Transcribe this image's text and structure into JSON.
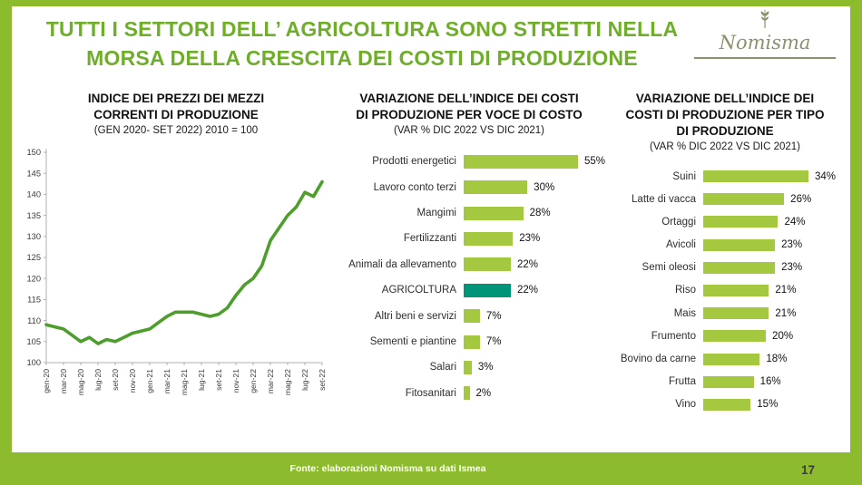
{
  "title": {
    "line1": "TUTTI I SETTORI DELL’ AGRICOLTURA SONO STRETTI NELLA",
    "line2": "MORSA DELLA CRESCITA DEI COSTI DI PRODUZIONE"
  },
  "logo": {
    "name": "Nomisma"
  },
  "footer": {
    "source": "Fonte: elaborazioni Nomisma su dati Ismea",
    "page": "17"
  },
  "colors": {
    "frame": "#8cbb2e",
    "title": "#6fae2a",
    "bar": "#a4c83f",
    "accent": "#009478",
    "line": "#4e9e2d",
    "logo": "#8f8f6d"
  },
  "chart_data": [
    {
      "type": "line",
      "title": "INDICE DEI PREZZI DEI MEZZI CORRENTI DI PRODUZIONE",
      "title_lines": [
        "INDICE DEI PREZZI DEI MEZZI",
        "CORRENTI DI PRODUZIONE"
      ],
      "subtitle": "(GEN 2020- SET 2022) 2010 = 100",
      "xlabel": "",
      "ylabel": "",
      "ylim": [
        100,
        150
      ],
      "ytick_step": 5,
      "grid": false,
      "x_label_every": 2,
      "x": [
        "gen-20",
        "feb-20",
        "mar-20",
        "apr-20",
        "mag-20",
        "giu-20",
        "lug-20",
        "ago-20",
        "set-20",
        "ott-20",
        "nov-20",
        "dic-20",
        "gen-21",
        "feb-21",
        "mar-21",
        "apr-21",
        "mag-21",
        "giu-21",
        "lug-21",
        "ago-21",
        "set-21",
        "ott-21",
        "nov-21",
        "dic-21",
        "gen-22",
        "feb-22",
        "mar-22",
        "apr-22",
        "mag-22",
        "giu-22",
        "lug-22",
        "ago-22",
        "set-22"
      ],
      "values": [
        109,
        108.5,
        108,
        106.5,
        105,
        106,
        104.5,
        105.5,
        105,
        106,
        107,
        107.5,
        108,
        109.5,
        111,
        112,
        112,
        112,
        111.5,
        111,
        111.5,
        113,
        116,
        118.5,
        120,
        123,
        129,
        132,
        135,
        137,
        140.5,
        139.5,
        143
      ]
    },
    {
      "type": "bar",
      "orientation": "horizontal",
      "title": "VARIAZIONE DELL’INDICE DEI COSTI DI PRODUZIONE PER VOCE DI COSTO",
      "title_lines": [
        "VARIAZIONE DELL’INDICE DEI COSTI",
        "DI PRODUZIONE PER VOCE DI COSTO"
      ],
      "subtitle": "(VAR % DIC 2022 VS DIC 2021)",
      "categories": [
        "Prodotti energetici",
        "Lavoro conto terzi",
        "Mangimi",
        "Fertilizzanti",
        "Animali da allevamento",
        "AGRICOLTURA",
        "Altri beni e servizi",
        "Sementi e piantine",
        "Salari",
        "Fitosanitari"
      ],
      "values": [
        55,
        30,
        28,
        23,
        22,
        22,
        7,
        7,
        3,
        2
      ],
      "value_labels": [
        "55%",
        "30%",
        "28%",
        "23%",
        "22%",
        "22%",
        "7%",
        "7%",
        "3%",
        "2%"
      ],
      "highlight_category": "AGRICOLTURA",
      "xlim": [
        0,
        60
      ],
      "legend": "none"
    },
    {
      "type": "bar",
      "orientation": "horizontal",
      "title": "VARIAZIONE DELL’INDICE DEI COSTI DI PRODUZIONE PER TIPO DI PRODUZIONE",
      "title_lines": [
        "VARIAZIONE DELL’INDICE DEI",
        "COSTI DI PRODUZIONE PER TIPO",
        "DI PRODUZIONE"
      ],
      "subtitle": "(VAR % DIC 2022 VS DIC 2021)",
      "categories": [
        "Suini",
        "Latte di vacca",
        "Ortaggi",
        "Avicoli",
        "Semi oleosi",
        "Riso",
        "Mais",
        "Frumento",
        "Bovino da carne",
        "Frutta",
        "Vino"
      ],
      "values": [
        34,
        26,
        24,
        23,
        23,
        21,
        21,
        20,
        18,
        16,
        15
      ],
      "value_labels": [
        "34%",
        "26%",
        "24%",
        "23%",
        "23%",
        "21%",
        "21%",
        "20%",
        "18%",
        "16%",
        "15%"
      ],
      "highlight_category": null,
      "xlim": [
        0,
        40
      ],
      "legend": "none"
    }
  ]
}
